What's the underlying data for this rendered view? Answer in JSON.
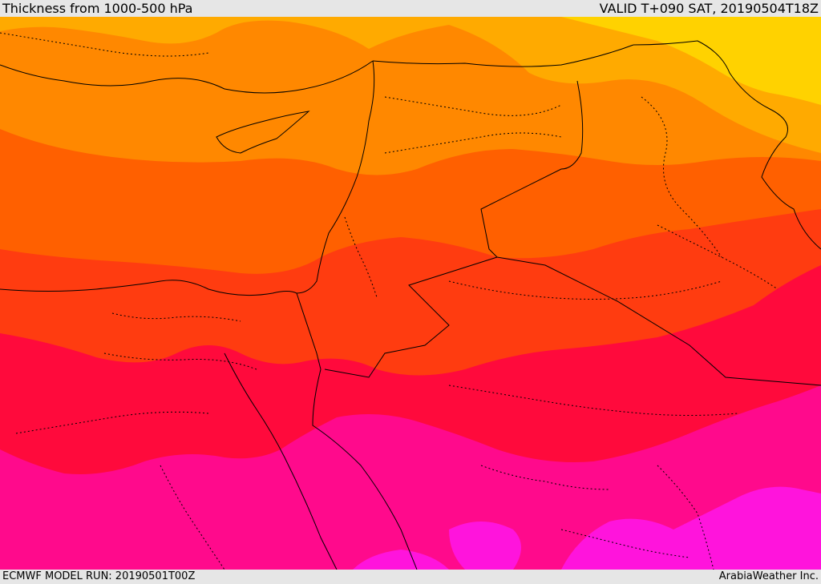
{
  "header": {
    "title": "Thickness from 1000-500 hPa",
    "valid": "VALID T+090 SAT, 20190504T18Z"
  },
  "footer": {
    "model_run": "ECMWF MODEL RUN: 20190501T00Z",
    "credit": "ArabiaWeather Inc."
  },
  "map": {
    "field": "1000-500 hPa thickness",
    "region": "Eastern Mediterranean, Levant, Egypt, Arabia",
    "colors": {
      "band_1": "#ffd200",
      "band_2": "#ffaa00",
      "band_3": "#ff8800",
      "band_4": "#ff6000",
      "band_5": "#ff3c10",
      "band_6": "#ff0a3c",
      "band_7": "#ff0a8c",
      "band_8": "#ff14dc",
      "borders": "#000000"
    }
  }
}
